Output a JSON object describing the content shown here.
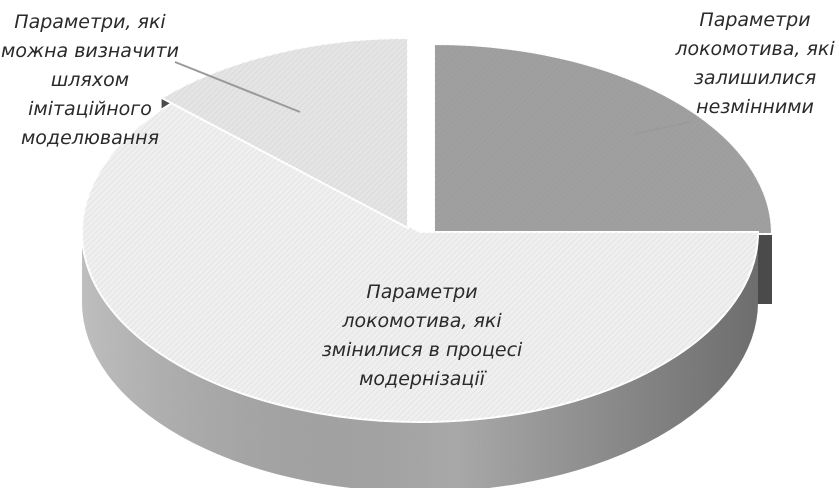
{
  "chart_data": {
    "type": "pie",
    "style": "3d-exploded",
    "legend": "none",
    "slices": [
      {
        "label": "Параметри локомотива, які залишилися незмінними",
        "lines": [
          "Параметри",
          "локомотива, які",
          "залишилися",
          "незмінними"
        ],
        "value": 25,
        "fill": "#9e9e9e",
        "side": "#5a5a5a"
      },
      {
        "label": "Параметри локомотива, які змінилися в процесі модернізації",
        "lines": [
          "Параметри",
          "локомотива, які",
          "змінилися в процесі",
          "модернізації"
        ],
        "value": 62,
        "fill": "#efefef",
        "side": "#a8a8a8"
      },
      {
        "label": "Параметри, які можна визначити шляхом імітаційного моделювання",
        "lines": [
          "Параметри, які",
          "можна визначити",
          "шляхом",
          "імітаційного",
          "моделювання"
        ],
        "value": 13,
        "fill": "#e4e4e4",
        "side": "#b4b4b4"
      }
    ]
  }
}
